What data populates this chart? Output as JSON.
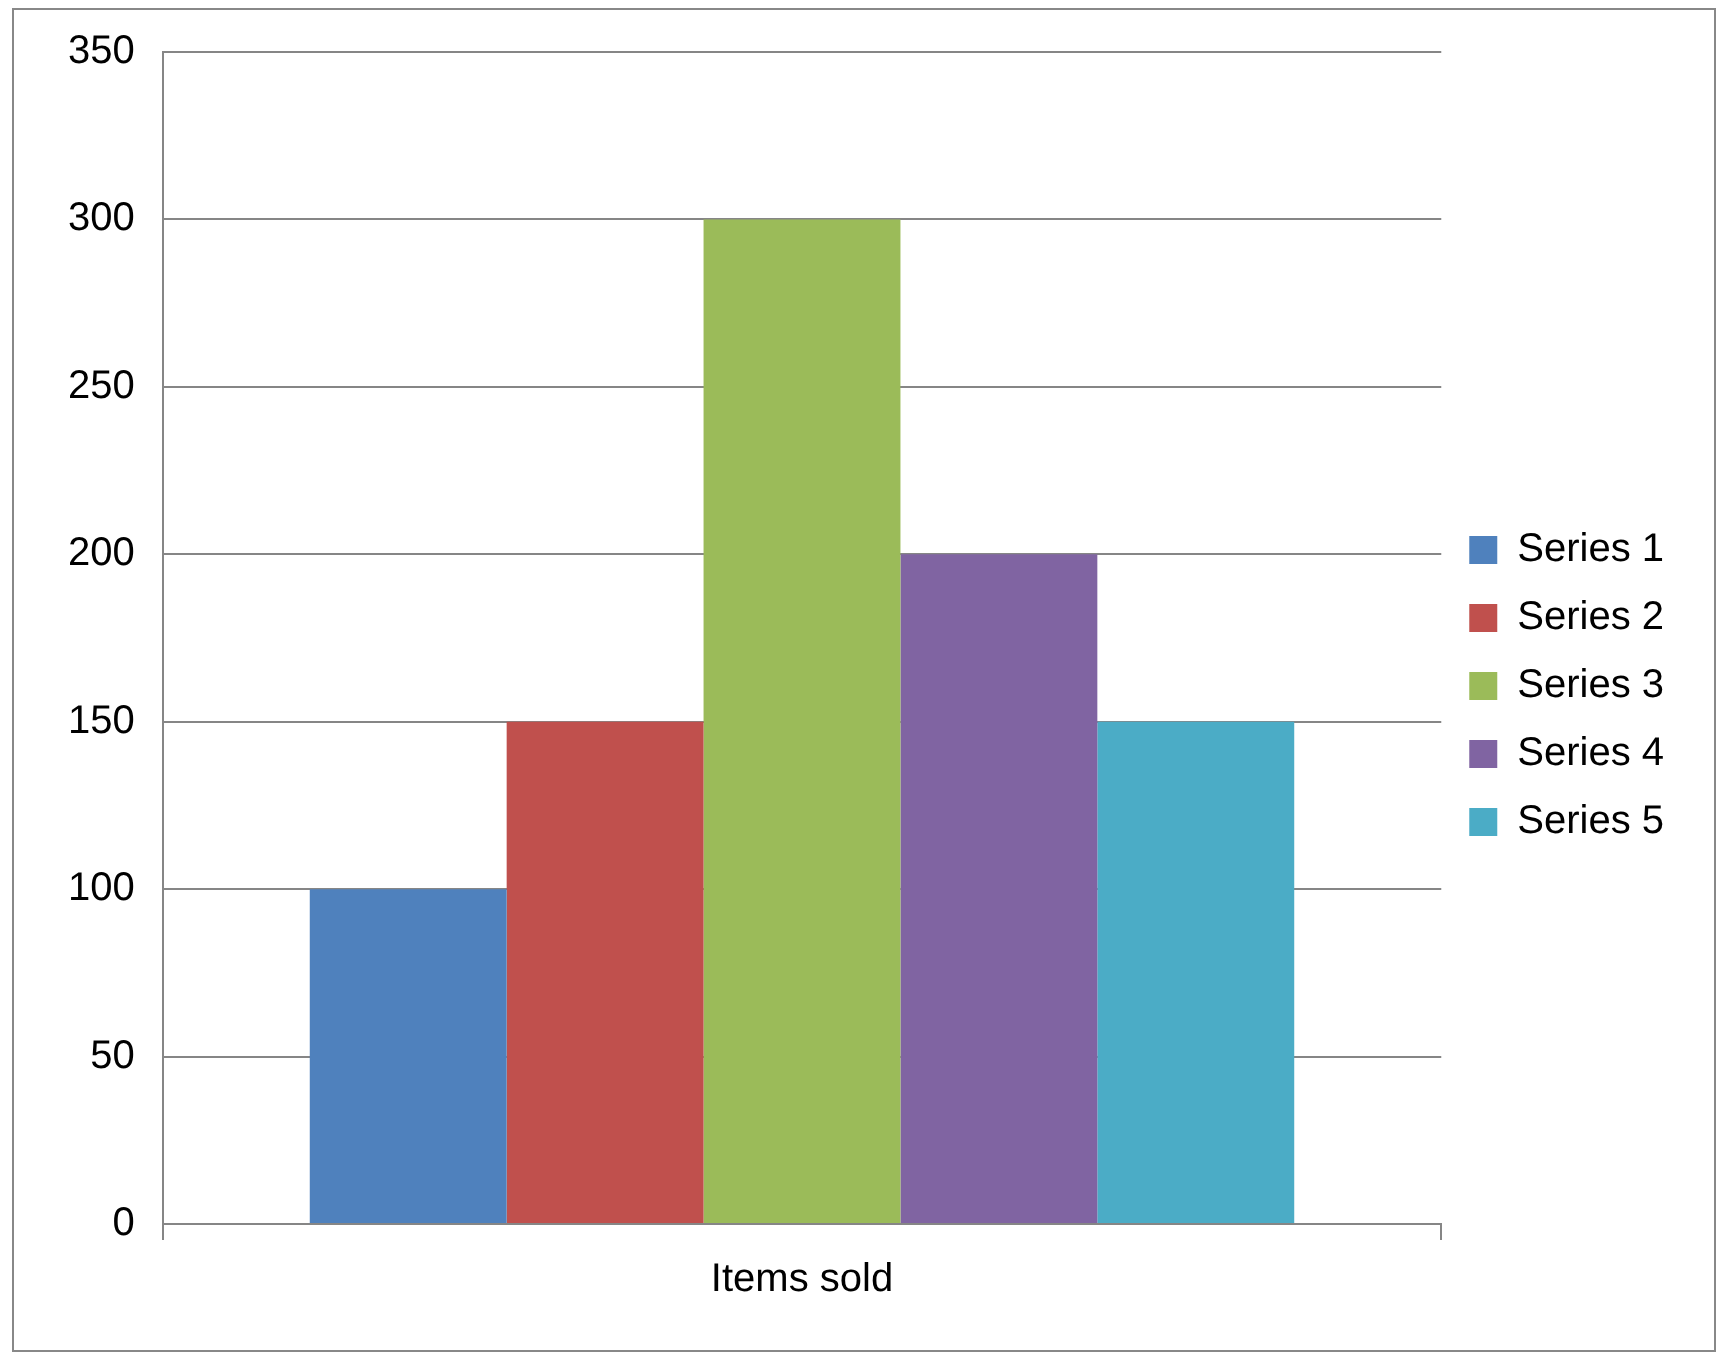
{
  "chart_data": {
    "type": "bar",
    "categories": [
      "Items sold"
    ],
    "series": [
      {
        "name": "Series 1",
        "color": "#4f81bd",
        "values": [
          100
        ]
      },
      {
        "name": "Series 2",
        "color": "#c0504d",
        "values": [
          150
        ]
      },
      {
        "name": "Series 3",
        "color": "#9bbb59",
        "values": [
          300
        ]
      },
      {
        "name": "Series 4",
        "color": "#8064a2",
        "values": [
          200
        ]
      },
      {
        "name": "Series 5",
        "color": "#4bacc6",
        "values": [
          150
        ]
      }
    ],
    "ylim": [
      0,
      350
    ],
    "yticks": [
      0,
      50,
      100,
      150,
      200,
      250,
      300,
      350
    ],
    "grid": "y",
    "legend": "right"
  }
}
